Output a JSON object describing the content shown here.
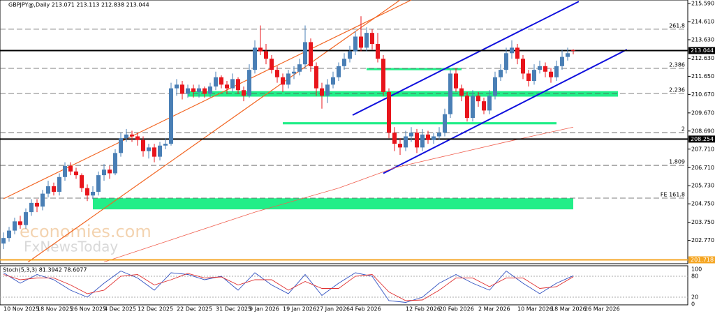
{
  "chart_data": {
    "type": "candlestick",
    "title": "GBPJPY@,Daily  213.071 213.113 212.838 213.044",
    "watermark": [
      "economies.com",
      "FxNewsToday"
    ],
    "categories": [
      "10 Nov 2025",
      null,
      null,
      null,
      null,
      null,
      "18 Nov 2025",
      null,
      null,
      null,
      null,
      null,
      "26 Nov 2025",
      null,
      null,
      null,
      null,
      null,
      "4 Dec 2025",
      null,
      null,
      null,
      null,
      null,
      "12 Dec 2025",
      null,
      null,
      null,
      null,
      null,
      null,
      "22 Dec 2025",
      null,
      null,
      null,
      null,
      null,
      null,
      "31 Dec 2025",
      null,
      null,
      null,
      null,
      null,
      "9 Jan 2026",
      null,
      null,
      null,
      null,
      null,
      "19 Jan 2026",
      null,
      null,
      null,
      null,
      null,
      "27 Jan 2026",
      null,
      null,
      null,
      null,
      null,
      "4 Feb 2026",
      null,
      null,
      null,
      null,
      null,
      null,
      null,
      null,
      null,
      "12 Feb 2026",
      null,
      null,
      null,
      null,
      null,
      "20 Feb 2026",
      null,
      null,
      null,
      null,
      null,
      null,
      "2 Mar 2026",
      null,
      null,
      null,
      null,
      null,
      null,
      "10 Mar 2026",
      null,
      null,
      null,
      null,
      null,
      "18 Mar 2026",
      null,
      null,
      null,
      null,
      null,
      "26 Mar 2026"
    ],
    "candles": [
      [
        202.6,
        203.2,
        202.3,
        202.9
      ],
      [
        202.9,
        203.5,
        202.7,
        203.3
      ],
      [
        203.3,
        204.0,
        203.1,
        203.8
      ],
      [
        203.8,
        204.1,
        203.4,
        203.6
      ],
      [
        203.6,
        204.5,
        203.4,
        204.3
      ],
      [
        204.3,
        205.0,
        204.1,
        204.8
      ],
      [
        204.8,
        205.0,
        204.3,
        204.6
      ],
      [
        204.6,
        205.5,
        204.4,
        205.3
      ],
      [
        205.3,
        206.0,
        205.1,
        205.7
      ],
      [
        205.7,
        205.9,
        205.2,
        205.4
      ],
      [
        205.4,
        206.4,
        205.2,
        206.2
      ],
      [
        206.2,
        207.0,
        206.0,
        206.8
      ],
      [
        206.8,
        207.0,
        206.3,
        206.5
      ],
      [
        206.5,
        206.7,
        206.1,
        206.3
      ],
      [
        206.3,
        206.4,
        205.4,
        205.6
      ],
      [
        205.6,
        205.8,
        204.9,
        205.2
      ],
      [
        205.2,
        205.7,
        205.0,
        205.4
      ],
      [
        205.4,
        206.5,
        205.2,
        206.3
      ],
      [
        206.3,
        206.9,
        206.0,
        206.6
      ],
      [
        206.6,
        206.8,
        206.1,
        206.4
      ],
      [
        206.4,
        207.7,
        206.3,
        207.5
      ],
      [
        207.5,
        208.6,
        207.3,
        208.3
      ],
      [
        208.3,
        208.8,
        208.1,
        208.5
      ],
      [
        208.5,
        208.7,
        208.1,
        208.4
      ],
      [
        208.4,
        208.6,
        207.9,
        208.2
      ],
      [
        208.2,
        208.4,
        207.3,
        207.6
      ],
      [
        207.6,
        208.0,
        207.2,
        207.8
      ],
      [
        207.8,
        208.0,
        207.0,
        207.3
      ],
      [
        207.3,
        208.1,
        207.1,
        207.9
      ],
      [
        207.9,
        208.3,
        207.7,
        208.0
      ],
      [
        208.0,
        211.3,
        207.9,
        211.0
      ],
      [
        211.0,
        211.5,
        210.6,
        211.2
      ],
      [
        211.2,
        211.4,
        210.4,
        210.7
      ],
      [
        210.7,
        211.2,
        210.5,
        211.0
      ],
      [
        211.0,
        211.2,
        210.5,
        210.8
      ],
      [
        210.8,
        211.2,
        210.5,
        211.0
      ],
      [
        211.0,
        211.1,
        210.5,
        210.7
      ],
      [
        210.7,
        211.3,
        210.5,
        211.1
      ],
      [
        211.1,
        211.9,
        210.9,
        211.6
      ],
      [
        211.6,
        211.7,
        211.0,
        211.2
      ],
      [
        211.2,
        211.4,
        210.7,
        211.0
      ],
      [
        211.0,
        211.8,
        210.8,
        211.5
      ],
      [
        211.5,
        211.6,
        210.7,
        210.9
      ],
      [
        210.9,
        211.1,
        210.3,
        210.6
      ],
      [
        210.6,
        212.3,
        210.5,
        212.0
      ],
      [
        212.0,
        213.6,
        211.8,
        213.2
      ],
      [
        213.2,
        214.4,
        212.8,
        213.0
      ],
      [
        213.0,
        213.4,
        212.3,
        212.6
      ],
      [
        212.6,
        212.8,
        211.8,
        212.0
      ],
      [
        212.0,
        212.2,
        211.3,
        211.6
      ],
      [
        211.6,
        211.8,
        210.8,
        211.2
      ],
      [
        211.2,
        212.0,
        211.0,
        211.8
      ],
      [
        211.8,
        212.2,
        211.5,
        211.9
      ],
      [
        211.9,
        212.6,
        211.7,
        212.3
      ],
      [
        212.3,
        214.4,
        212.1,
        213.5
      ],
      [
        213.5,
        213.7,
        211.9,
        212.2
      ],
      [
        212.2,
        212.4,
        210.6,
        211.0
      ],
      [
        211.0,
        211.3,
        209.9,
        210.6
      ],
      [
        210.6,
        211.5,
        210.2,
        211.2
      ],
      [
        211.2,
        211.9,
        211.0,
        211.6
      ],
      [
        211.6,
        212.4,
        211.4,
        212.2
      ],
      [
        212.2,
        212.9,
        212.0,
        212.6
      ],
      [
        212.6,
        213.3,
        212.4,
        213.0
      ],
      [
        213.0,
        214.1,
        212.8,
        213.8
      ],
      [
        213.8,
        214.9,
        213.0,
        213.2
      ],
      [
        213.2,
        214.3,
        213.0,
        214.0
      ],
      [
        214.0,
        214.2,
        213.1,
        213.4
      ],
      [
        213.4,
        214.0,
        212.4,
        212.6
      ],
      [
        212.6,
        212.8,
        210.6,
        210.8
      ],
      [
        210.8,
        211.0,
        208.3,
        208.6
      ],
      [
        208.6,
        208.9,
        207.6,
        208.0
      ],
      [
        208.0,
        208.3,
        207.4,
        207.8
      ],
      [
        207.8,
        208.7,
        207.6,
        208.4
      ],
      [
        208.4,
        208.9,
        208.1,
        208.6
      ],
      [
        208.6,
        208.8,
        207.5,
        207.8
      ],
      [
        207.8,
        208.8,
        207.6,
        208.5
      ],
      [
        208.5,
        208.7,
        208.0,
        208.2
      ],
      [
        208.2,
        208.6,
        208.0,
        208.4
      ],
      [
        208.4,
        208.9,
        208.2,
        208.6
      ],
      [
        208.6,
        209.9,
        208.4,
        209.6
      ],
      [
        209.6,
        212.0,
        209.4,
        211.8
      ],
      [
        211.8,
        212.1,
        210.8,
        211.0
      ],
      [
        211.0,
        211.2,
        210.3,
        210.6
      ],
      [
        210.6,
        210.8,
        209.2,
        209.4
      ],
      [
        209.4,
        210.9,
        209.2,
        210.6
      ],
      [
        210.6,
        210.8,
        210.0,
        210.3
      ],
      [
        210.3,
        210.5,
        209.6,
        209.8
      ],
      [
        209.8,
        210.9,
        209.6,
        210.6
      ],
      [
        210.6,
        211.9,
        210.4,
        211.6
      ],
      [
        211.6,
        212.3,
        211.4,
        212.0
      ],
      [
        212.0,
        213.2,
        211.8,
        212.9
      ],
      [
        212.9,
        213.6,
        212.6,
        213.2
      ],
      [
        213.2,
        213.4,
        212.3,
        212.6
      ],
      [
        212.6,
        212.8,
        211.5,
        211.8
      ],
      [
        211.8,
        212.0,
        211.1,
        211.4
      ],
      [
        211.4,
        212.3,
        211.2,
        212.0
      ],
      [
        212.0,
        212.5,
        211.8,
        212.2
      ],
      [
        212.2,
        212.4,
        211.6,
        211.9
      ],
      [
        211.9,
        212.1,
        211.3,
        211.6
      ],
      [
        211.6,
        212.5,
        211.4,
        212.2
      ],
      [
        212.2,
        213.1,
        212.0,
        212.7
      ],
      [
        212.7,
        213.2,
        212.5,
        212.9
      ],
      [
        213.071,
        213.113,
        212.838,
        213.044
      ],
      null,
      null
    ],
    "up_color": "#4a7fb5",
    "down_color": "#e8141b",
    "ylim": [
      201.51,
      215.78
    ],
    "yticks": [
      {
        "value": 215.59,
        "label": "215.590"
      },
      {
        "value": 214.61,
        "label": "214.610"
      },
      {
        "value": 213.63,
        "label": "213.630"
      },
      {
        "value": 212.63,
        "label": "212.630"
      },
      {
        "value": 211.65,
        "label": "211.650"
      },
      {
        "value": 210.67,
        "label": "210.670"
      },
      {
        "value": 209.67,
        "label": "209.670"
      },
      {
        "value": 208.69,
        "label": "208.690"
      },
      {
        "value": 207.71,
        "label": "207.710"
      },
      {
        "value": 206.71,
        "label": "206.710"
      },
      {
        "value": 205.73,
        "label": "205.730"
      },
      {
        "value": 204.75,
        "label": "204.750"
      },
      {
        "value": 203.75,
        "label": "203.750"
      },
      {
        "value": 202.77,
        "label": "202.770"
      }
    ],
    "fib_levels": [
      {
        "value": 214.2,
        "label": "261.8"
      },
      {
        "value": 212.08,
        "label": "2.386"
      },
      {
        "value": 210.72,
        "label": "2.236"
      },
      {
        "value": 208.6,
        "label": "2"
      },
      {
        "value": 206.83,
        "label": "1.809"
      },
      {
        "value": 205.06,
        "label": "FE 161.8"
      }
    ],
    "price_markers": [
      {
        "value": 213.044,
        "color": "#000000"
      },
      {
        "value": 208.254,
        "color": "#000000"
      },
      {
        "value": 201.718,
        "color": "#f5a623"
      }
    ],
    "zones": [
      {
        "from": 210.55,
        "to": 210.85,
        "start": 33,
        "end": 110
      },
      {
        "from": 204.45,
        "to": 205.05,
        "start": 16,
        "end": 102
      },
      {
        "from": 211.98,
        "to": 212.1,
        "start": 65,
        "end": 82
      },
      {
        "from": 209.05,
        "to": 209.17,
        "start": 50,
        "end": 99
      }
    ],
    "zone_color": "#22ee88",
    "trendlines": [
      {
        "color": "#f26522",
        "points": [
          [
            0,
            205.02
          ],
          [
            73,
            215.78
          ]
        ]
      },
      {
        "color": "#f26522",
        "points": [
          [
            4.4,
            201.6
          ],
          [
            71,
            215.78
          ]
        ]
      },
      {
        "color": "#1010dd",
        "points": [
          [
            62.5,
            209.55
          ],
          [
            103,
            215.7
          ]
        ]
      },
      {
        "color": "#1010dd",
        "points": [
          [
            68,
            206.4
          ],
          [
            111.6,
            213.1
          ]
        ]
      }
    ],
    "ma": {
      "color": "#f06050",
      "x": [
        18,
        30,
        45,
        60,
        70,
        80,
        90,
        102
      ],
      "values": [
        201.6,
        202.8,
        204.3,
        205.6,
        206.7,
        207.4,
        208.1,
        208.9
      ]
    },
    "stoch": {
      "title": "Stoch(5,3,3) 81.3942 78.6077",
      "ylim": [
        0,
        100
      ],
      "yticks": [
        100,
        80,
        20,
        0
      ],
      "x": [
        0,
        3,
        6,
        9,
        12,
        15,
        18,
        21,
        24,
        27,
        30,
        33,
        36,
        39,
        42,
        45,
        48,
        51,
        54,
        57,
        60,
        63,
        66,
        69,
        72,
        75,
        78,
        81,
        84,
        87,
        90,
        93,
        96,
        99,
        102
      ],
      "series": [
        {
          "color": "#3050c0",
          "values": [
            90,
            60,
            85,
            70,
            40,
            20,
            60,
            95,
            75,
            40,
            90,
            85,
            70,
            80,
            40,
            90,
            55,
            30,
            85,
            25,
            60,
            90,
            80,
            10,
            5,
            20,
            60,
            85,
            60,
            40,
            95,
            60,
            30,
            60,
            81.3942
          ]
        },
        {
          "color": "#e03030",
          "values": [
            85,
            70,
            75,
            75,
            55,
            30,
            40,
            80,
            85,
            55,
            70,
            88,
            75,
            78,
            55,
            70,
            70,
            40,
            65,
            45,
            45,
            80,
            85,
            35,
            10,
            12,
            40,
            75,
            75,
            50,
            75,
            75,
            45,
            50,
            78.6077
          ]
        }
      ]
    }
  }
}
